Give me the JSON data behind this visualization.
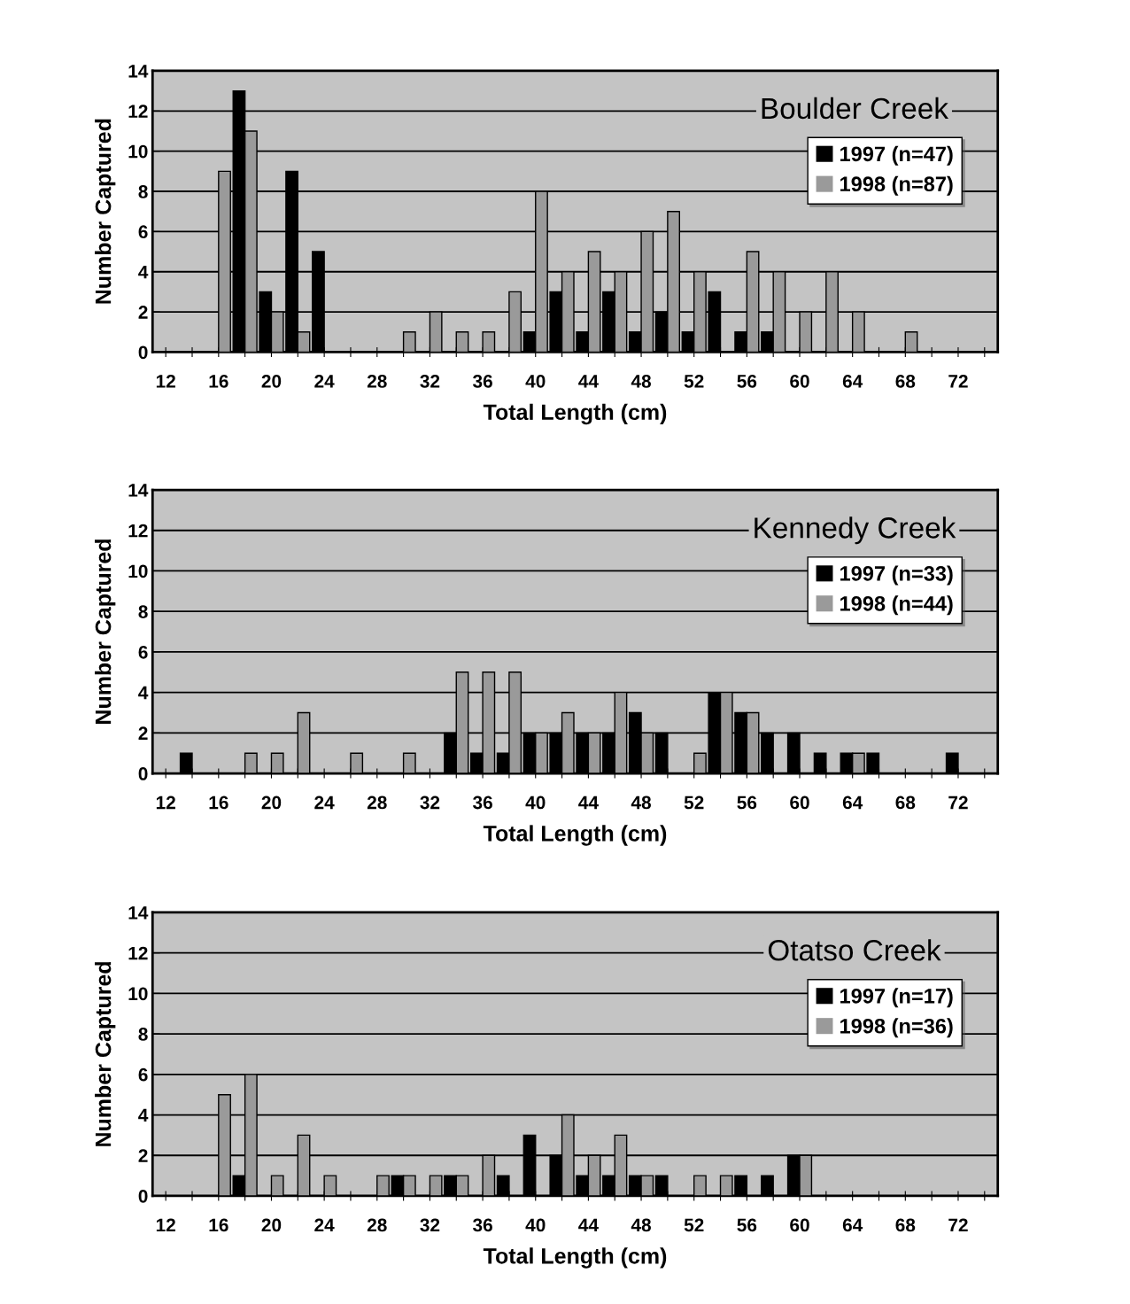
{
  "chart_data": [
    {
      "type": "bar",
      "title": "Boulder Creek",
      "xlabel": "Total Length (cm)",
      "ylabel": "Number Captured",
      "categories": [
        "12",
        null,
        "16",
        null,
        "20",
        null,
        "24",
        null,
        "28",
        null,
        "32",
        null,
        "36",
        null,
        "40",
        null,
        "44",
        null,
        "48",
        null,
        "52",
        null,
        "56",
        null,
        "60",
        null,
        "64",
        null,
        "68",
        null,
        "72",
        null
      ],
      "series": [
        {
          "name": "1997 (n=47)",
          "color": "#000000",
          "values": [
            0,
            0,
            0,
            13,
            3,
            9,
            5,
            0,
            0,
            0,
            0,
            0,
            0,
            0,
            1,
            3,
            1,
            3,
            1,
            2,
            1,
            3,
            1,
            1,
            0,
            0,
            0,
            0,
            0,
            0,
            0,
            0
          ]
        },
        {
          "name": "1998 (n=87)",
          "color": "#9a9a9a",
          "values": [
            0,
            0,
            9,
            11,
            2,
            1,
            0,
            0,
            0,
            1,
            2,
            1,
            1,
            3,
            8,
            4,
            5,
            4,
            6,
            7,
            4,
            0,
            5,
            4,
            2,
            4,
            2,
            0,
            1,
            0,
            0,
            0
          ]
        }
      ],
      "ylim": [
        0,
        14
      ],
      "yticks": [
        0,
        2,
        4,
        6,
        8,
        10,
        12,
        14
      ],
      "grid": "y",
      "legend": "top right"
    },
    {
      "type": "bar",
      "title": "Kennedy Creek",
      "xlabel": "Total Length (cm)",
      "ylabel": "Number Captured",
      "categories": [
        "12",
        null,
        "16",
        null,
        "20",
        null,
        "24",
        null,
        "28",
        null,
        "32",
        null,
        "36",
        null,
        "40",
        null,
        "44",
        null,
        "48",
        null,
        "52",
        null,
        "56",
        null,
        "60",
        null,
        "64",
        null,
        "68",
        null,
        "72",
        null
      ],
      "series": [
        {
          "name": "1997 (n=33)",
          "color": "#000000",
          "values": [
            0,
            1,
            0,
            0,
            0,
            0,
            0,
            0,
            0,
            0,
            0,
            2,
            1,
            1,
            2,
            2,
            2,
            2,
            3,
            2,
            0,
            4,
            3,
            2,
            2,
            1,
            1,
            1,
            0,
            0,
            1,
            0
          ]
        },
        {
          "name": "1998 (n=44)",
          "color": "#9a9a9a",
          "values": [
            0,
            0,
            0,
            1,
            1,
            3,
            0,
            1,
            0,
            1,
            0,
            5,
            5,
            5,
            2,
            3,
            2,
            4,
            2,
            0,
            1,
            4,
            3,
            0,
            0,
            0,
            1,
            0,
            0,
            0,
            0,
            0
          ]
        }
      ],
      "ylim": [
        0,
        14
      ],
      "yticks": [
        0,
        2,
        4,
        6,
        8,
        10,
        12,
        14
      ],
      "grid": "y",
      "legend": "top right"
    },
    {
      "type": "bar",
      "title": "Otatso Creek",
      "xlabel": "Total Length (cm)",
      "ylabel": "Number Captured",
      "categories": [
        "12",
        null,
        "16",
        null,
        "20",
        null,
        "24",
        null,
        "28",
        null,
        "32",
        null,
        "36",
        null,
        "40",
        null,
        "44",
        null,
        "48",
        null,
        "52",
        null,
        "56",
        null,
        "60",
        null,
        "64",
        null,
        "68",
        null,
        "72",
        null
      ],
      "series": [
        {
          "name": "1997 (n=17)",
          "color": "#000000",
          "values": [
            0,
            0,
            0,
            1,
            0,
            0,
            0,
            0,
            0,
            1,
            0,
            1,
            0,
            1,
            3,
            2,
            1,
            1,
            1,
            1,
            0,
            0,
            1,
            1,
            2,
            0,
            0,
            0,
            0,
            0,
            0,
            0
          ]
        },
        {
          "name": "1998 (n=36)",
          "color": "#9a9a9a",
          "values": [
            0,
            0,
            5,
            6,
            1,
            3,
            1,
            0,
            1,
            1,
            1,
            1,
            2,
            0,
            0,
            4,
            2,
            3,
            1,
            0,
            1,
            1,
            0,
            0,
            2,
            0,
            0,
            0,
            0,
            0,
            0,
            0
          ]
        }
      ],
      "ylim": [
        0,
        14
      ],
      "yticks": [
        0,
        2,
        4,
        6,
        8,
        10,
        12,
        14
      ],
      "grid": "y",
      "legend": "top right"
    }
  ]
}
